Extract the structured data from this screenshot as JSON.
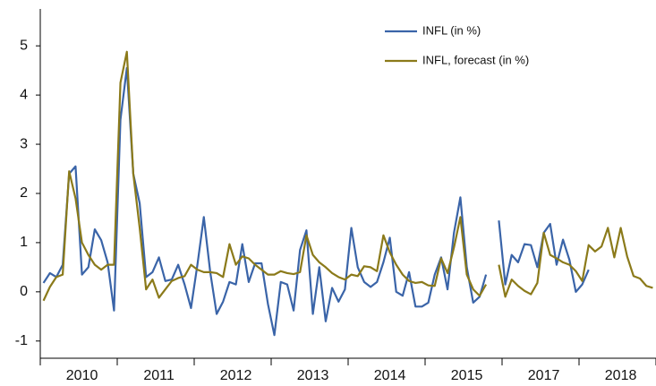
{
  "chart_data": {
    "type": "line",
    "categories": [
      null,
      null,
      null,
      null,
      null,
      null,
      "2010",
      null,
      null,
      null,
      null,
      null,
      null,
      null,
      null,
      null,
      null,
      null,
      "2011",
      null,
      null,
      null,
      null,
      null,
      null,
      null,
      null,
      null,
      null,
      null,
      "2012",
      null,
      null,
      null,
      null,
      null,
      null,
      null,
      null,
      null,
      null,
      null,
      "2013",
      null,
      null,
      null,
      null,
      null,
      null,
      null,
      null,
      null,
      null,
      null,
      "2014",
      null,
      null,
      null,
      null,
      null,
      null,
      null,
      null,
      null,
      null,
      null,
      "2015",
      null,
      null,
      null,
      null,
      null,
      null,
      null,
      null,
      null,
      null,
      null,
      "2017",
      null,
      null,
      null,
      null,
      null,
      null,
      null,
      null,
      null,
      null,
      null,
      "2018",
      null,
      null,
      null,
      null,
      null
    ],
    "series": [
      {
        "name": "INFL (in %)",
        "color": "#3a64a8",
        "values": [
          0.18,
          0.38,
          0.3,
          0.55,
          2.4,
          2.55,
          0.35,
          0.5,
          1.27,
          1.05,
          0.6,
          -0.38,
          3.5,
          4.55,
          2.4,
          1.8,
          0.3,
          0.4,
          0.7,
          0.22,
          0.25,
          0.55,
          0.15,
          -0.33,
          0.55,
          1.52,
          0.4,
          -0.45,
          -0.2,
          0.2,
          0.15,
          0.97,
          0.2,
          0.58,
          0.58,
          -0.25,
          -0.88,
          0.2,
          0.15,
          -0.38,
          0.85,
          1.25,
          -0.45,
          0.5,
          -0.6,
          0.08,
          -0.2,
          0.05,
          1.3,
          0.5,
          0.2,
          0.1,
          0.2,
          0.6,
          1.1,
          0.0,
          -0.08,
          0.4,
          -0.3,
          -0.3,
          -0.22,
          0.35,
          0.7,
          0.05,
          1.2,
          1.92,
          0.5,
          -0.22,
          -0.1,
          0.35,
          null,
          1.45,
          0.15,
          0.75,
          0.6,
          0.97,
          0.95,
          0.5,
          1.2,
          1.38,
          0.55,
          1.06,
          0.65,
          0.0,
          0.15,
          0.45,
          null,
          null,
          null,
          null,
          null,
          null,
          null,
          null,
          null,
          null
        ]
      },
      {
        "name": "INFL, forecast (in %)",
        "color": "#8b7a1a",
        "values": [
          -0.18,
          0.1,
          0.3,
          0.35,
          2.45,
          1.9,
          1.0,
          0.75,
          0.55,
          0.45,
          0.55,
          0.55,
          4.25,
          4.88,
          2.4,
          1.3,
          0.05,
          0.25,
          -0.12,
          0.05,
          0.22,
          0.28,
          0.32,
          0.55,
          0.45,
          0.4,
          0.4,
          0.38,
          0.3,
          0.97,
          0.55,
          0.72,
          0.68,
          0.55,
          0.45,
          0.35,
          0.35,
          0.42,
          0.38,
          0.36,
          0.4,
          1.15,
          0.75,
          0.6,
          0.5,
          0.38,
          0.3,
          0.25,
          0.35,
          0.32,
          0.52,
          0.5,
          0.42,
          1.15,
          0.8,
          0.55,
          0.35,
          0.22,
          0.18,
          0.2,
          0.13,
          0.12,
          0.68,
          0.38,
          0.9,
          1.52,
          0.35,
          0.05,
          -0.08,
          0.15,
          null,
          0.55,
          -0.1,
          0.25,
          0.12,
          0.02,
          -0.05,
          0.18,
          1.2,
          0.75,
          0.68,
          0.6,
          0.55,
          0.42,
          0.22,
          0.95,
          0.82,
          0.92,
          1.3,
          0.7,
          1.3,
          0.72,
          0.32,
          0.27,
          0.12,
          0.08
        ]
      }
    ],
    "ylim": [
      -1.35,
      5.75
    ],
    "yticks": [
      -1,
      0,
      1,
      2,
      3,
      4,
      5
    ]
  }
}
